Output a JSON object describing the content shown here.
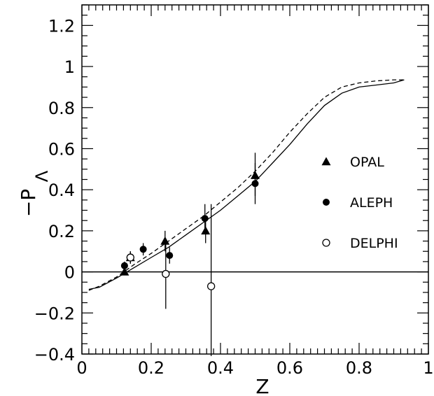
{
  "chart_data": {
    "type": "scatter",
    "xlabel": "Z",
    "ylabel": "−P",
    "ylabel_subscript": "Λ",
    "xlim": [
      0,
      1
    ],
    "ylim": [
      -0.4,
      1.3
    ],
    "x_ticks": [
      {
        "v": 0,
        "label": "0"
      },
      {
        "v": 0.2,
        "label": "0.2"
      },
      {
        "v": 0.4,
        "label": "0.4"
      },
      {
        "v": 0.6,
        "label": "0.6"
      },
      {
        "v": 0.8,
        "label": "0.8"
      },
      {
        "v": 1,
        "label": "1"
      }
    ],
    "y_ticks": [
      {
        "v": -0.4,
        "label": "−0.4"
      },
      {
        "v": -0.2,
        "label": "−0.2"
      },
      {
        "v": 0,
        "label": "0"
      },
      {
        "v": 0.2,
        "label": "0.2"
      },
      {
        "v": 0.4,
        "label": "0.4"
      },
      {
        "v": 0.6,
        "label": "0.6"
      },
      {
        "v": 0.8,
        "label": "0.8"
      },
      {
        "v": 1,
        "label": "1"
      },
      {
        "v": 1.2,
        "label": "1.2"
      }
    ],
    "zero_line": true,
    "legend_position": "right",
    "series": [
      {
        "name": "OPAL",
        "marker": "triangle",
        "points": [
          {
            "x": 0.123,
            "y": 0.0,
            "lo": -0.01,
            "hi": 0.02
          },
          {
            "x": 0.14,
            "y": 0.07,
            "lo": 0.04,
            "hi": 0.1
          },
          {
            "x": 0.24,
            "y": 0.15,
            "lo": 0.1,
            "hi": 0.2
          },
          {
            "x": 0.357,
            "y": 0.2,
            "lo": 0.14,
            "hi": 0.26
          },
          {
            "x": 0.5,
            "y": 0.47,
            "lo": 0.37,
            "hi": 0.58
          }
        ]
      },
      {
        "name": "ALEPH",
        "marker": "filled-circle",
        "points": [
          {
            "x": 0.123,
            "y": 0.03,
            "lo": 0.01,
            "hi": 0.05
          },
          {
            "x": 0.177,
            "y": 0.11,
            "lo": 0.08,
            "hi": 0.14
          },
          {
            "x": 0.253,
            "y": 0.08,
            "lo": 0.04,
            "hi": 0.12
          },
          {
            "x": 0.355,
            "y": 0.26,
            "lo": 0.19,
            "hi": 0.33
          },
          {
            "x": 0.5,
            "y": 0.43,
            "lo": 0.33,
            "hi": 0.53
          }
        ]
      },
      {
        "name": "DELPHI",
        "marker": "open-circle",
        "points": [
          {
            "x": 0.14,
            "y": 0.07,
            "lo": 0.04,
            "hi": 0.1
          },
          {
            "x": 0.242,
            "y": -0.01,
            "lo": -0.18,
            "hi": 0.15
          },
          {
            "x": 0.373,
            "y": -0.07,
            "lo": -0.41,
            "hi": 0.33
          }
        ]
      }
    ],
    "curves": [
      {
        "style": "solid",
        "x": [
          0.02,
          0.05,
          0.1,
          0.15,
          0.2,
          0.25,
          0.3,
          0.35,
          0.4,
          0.45,
          0.5,
          0.55,
          0.6,
          0.65,
          0.7,
          0.75,
          0.8,
          0.85,
          0.9,
          0.93
        ],
        "y": [
          -0.085,
          -0.075,
          -0.03,
          0.02,
          0.07,
          0.12,
          0.18,
          0.24,
          0.3,
          0.37,
          0.44,
          0.53,
          0.62,
          0.72,
          0.81,
          0.87,
          0.9,
          0.91,
          0.92,
          0.935
        ]
      },
      {
        "style": "dashed",
        "x": [
          0.02,
          0.05,
          0.1,
          0.15,
          0.2,
          0.25,
          0.3,
          0.35,
          0.4,
          0.45,
          0.5,
          0.55,
          0.6,
          0.65,
          0.7,
          0.75,
          0.8,
          0.85,
          0.9,
          0.93
        ],
        "y": [
          -0.09,
          -0.07,
          -0.025,
          0.035,
          0.09,
          0.15,
          0.21,
          0.27,
          0.34,
          0.41,
          0.49,
          0.58,
          0.68,
          0.77,
          0.85,
          0.9,
          0.92,
          0.93,
          0.935,
          0.935
        ]
      }
    ]
  }
}
